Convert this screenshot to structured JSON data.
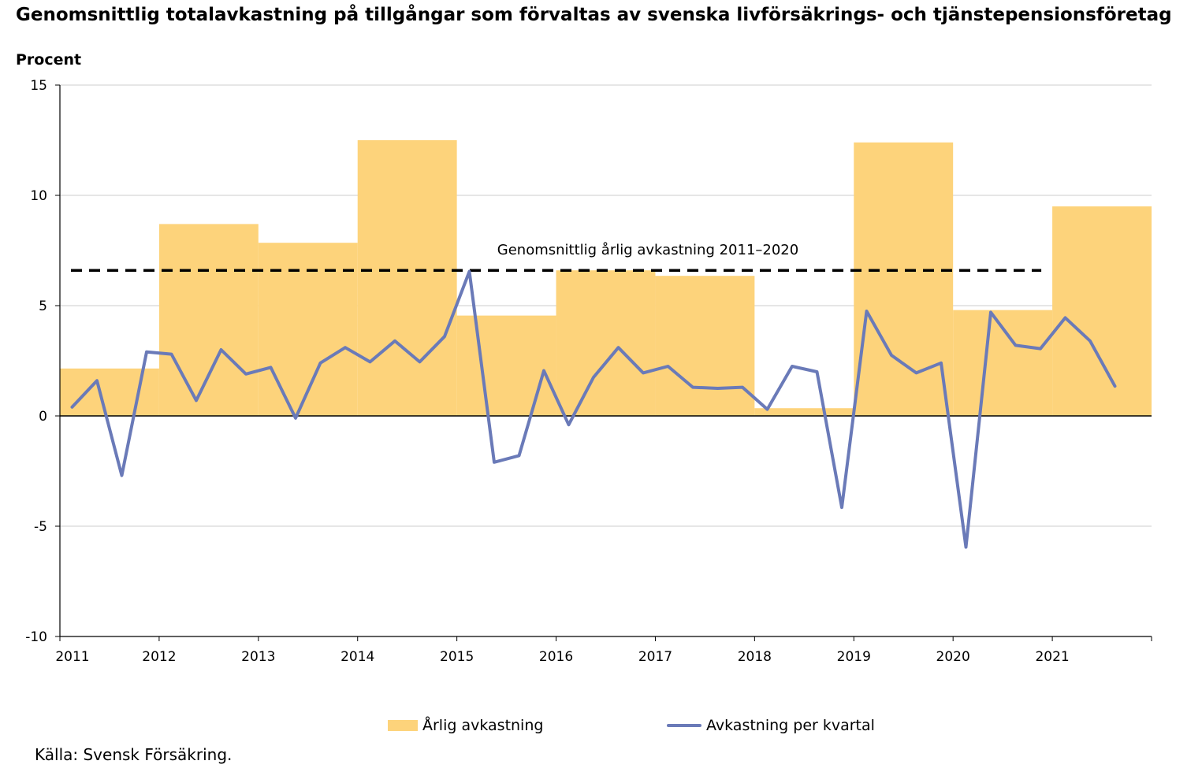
{
  "title": "Genomsnittlig totalavkastning på tillgångar som förvaltas av svenska livförsäkrings- och tjänstepensionsföretag",
  "unit_label": "Procent",
  "source": "Källa: Svensk Försäkring.",
  "legend": {
    "bars_label": "Årlig avkastning",
    "line_label": "Avkastning per kvartal"
  },
  "colors": {
    "bars": "#fdd37b",
    "line": "#6a7ab8",
    "reference": "#000000",
    "grid": "#cccccc"
  },
  "chart_data": {
    "type": "bar",
    "ylim": [
      -10,
      15
    ],
    "yticks": [
      -10,
      -5,
      0,
      5,
      10,
      15
    ],
    "xlim": [
      2011,
      2022
    ],
    "xtick_labels": [
      "2011",
      "2012",
      "2013",
      "2014",
      "2015",
      "2016",
      "2017",
      "2018",
      "2019",
      "2020",
      "2021"
    ],
    "grid": true,
    "legend_position": "bottom",
    "series": [
      {
        "name": "Årlig avkastning",
        "type": "bar",
        "categories": [
          "2011",
          "2012",
          "2013",
          "2014",
          "2015",
          "2016",
          "2017",
          "2018",
          "2019",
          "2020",
          "2021"
        ],
        "values": [
          2.15,
          8.7,
          7.85,
          12.5,
          4.55,
          6.6,
          6.35,
          0.35,
          12.4,
          4.8,
          9.5
        ]
      },
      {
        "name": "Avkastning per kvartal",
        "type": "line",
        "quarters": [
          "2011 K1",
          "2011 K2",
          "2011 K3",
          "2011 K4",
          "2012 K1",
          "2012 K2",
          "2012 K3",
          "2012 K4",
          "2013 K1",
          "2013 K2",
          "2013 K3",
          "2013 K4",
          "2014 K1",
          "2014 K2",
          "2014 K3",
          "2014 K4",
          "2015 K1",
          "2015 K2",
          "2015 K3",
          "2015 K4",
          "2016 K1",
          "2016 K2",
          "2016 K3",
          "2016 K4",
          "2017 K1",
          "2017 K2",
          "2017 K3",
          "2017 K4",
          "2018 K1",
          "2018 K2",
          "2018 K3",
          "2018 K4",
          "2019 K1",
          "2019 K2",
          "2019 K3",
          "2019 K4",
          "2020 K1",
          "2020 K2",
          "2020 K3",
          "2020 K4",
          "2021 K1",
          "2021 K2",
          "2021 K3"
        ],
        "values": [
          0.4,
          1.6,
          -2.7,
          2.9,
          2.8,
          0.7,
          3.0,
          1.9,
          2.2,
          -0.1,
          2.4,
          3.1,
          2.45,
          3.4,
          2.45,
          3.6,
          6.55,
          -2.1,
          -1.8,
          2.05,
          -0.4,
          1.75,
          3.1,
          1.95,
          2.25,
          1.3,
          1.25,
          1.3,
          0.3,
          2.25,
          2.0,
          -4.15,
          4.75,
          2.75,
          1.95,
          2.4,
          -5.95,
          4.7,
          3.2,
          3.05,
          4.45,
          3.4,
          1.35
        ]
      }
    ],
    "reference_line": {
      "label": "Genomsnittlig årlig avkastning 2011–2020",
      "value": 6.6,
      "x_range": [
        2011,
        2021
      ],
      "style": "dashed"
    }
  }
}
